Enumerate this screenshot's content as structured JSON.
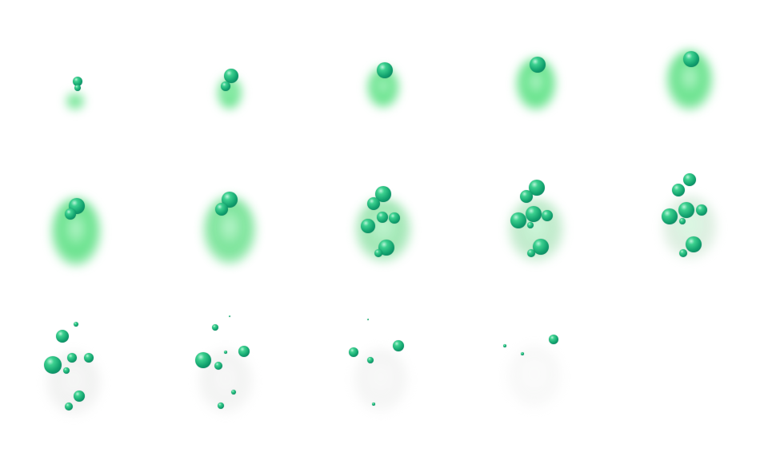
{
  "sprite_sheet": {
    "frame_count": 14,
    "columns": 5,
    "colors": {
      "background": "#ffffff",
      "bubble": "#12a26e",
      "bubble_highlight": "#b8f5d8",
      "smoke_green": "#5ee07f",
      "smoke_grey": "#d8d8d8"
    }
  }
}
